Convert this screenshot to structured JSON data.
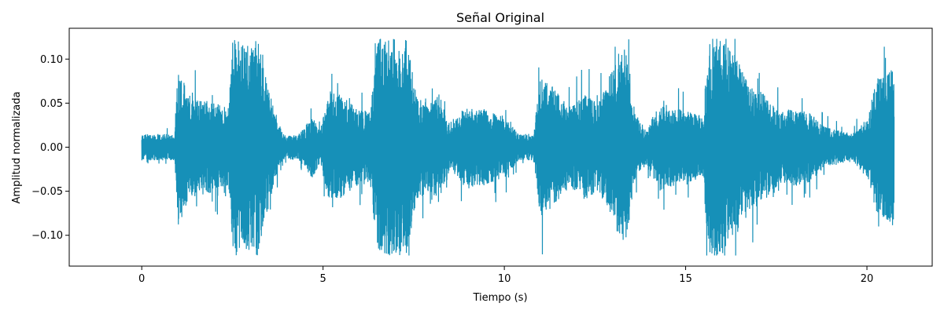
{
  "chart_data": {
    "type": "line",
    "title": "Señal Original",
    "xlabel": "Tiempo (s)",
    "ylabel": "Amplitud normalizada",
    "xlim": [
      -2,
      21.8
    ],
    "ylim": [
      -0.135,
      0.135
    ],
    "xticks": [
      0,
      5,
      10,
      15,
      20
    ],
    "xtick_labels": [
      "0",
      "5",
      "10",
      "15",
      "20"
    ],
    "yticks": [
      -0.1,
      -0.05,
      0.0,
      0.05,
      0.1
    ],
    "ytick_labels": [
      "−0.10",
      "−0.05",
      "0.00",
      "0.05",
      "0.10"
    ],
    "grid": false,
    "color": "#1690b8",
    "duration_s": 20.75,
    "clip_level": 0.123,
    "series": [
      {
        "envelope": {
          "t": [
            0,
            0.9,
            1.0,
            1.3,
            1.7,
            2.1,
            2.4,
            2.5,
            3.2,
            3.4,
            3.7,
            3.9,
            4.3,
            4.7,
            4.9,
            5.2,
            5.6,
            5.9,
            6.3,
            6.5,
            7.3,
            7.6,
            7.9,
            8.2,
            8.5,
            8.9,
            9.3,
            9.7,
            10.0,
            10.4,
            10.8,
            11.0,
            11.4,
            11.8,
            12.2,
            12.6,
            13.0,
            13.3,
            13.6,
            13.9,
            14.3,
            14.7,
            15.1,
            15.5,
            15.6,
            16.0,
            16.4,
            16.8,
            17.2,
            17.6,
            18.0,
            18.4,
            18.8,
            19.2,
            19.6,
            20.0,
            20.3,
            20.75
          ],
          "amp": [
            0.015,
            0.015,
            0.09,
            0.06,
            0.055,
            0.05,
            0.045,
            0.123,
            0.123,
            0.085,
            0.035,
            0.015,
            0.013,
            0.035,
            0.02,
            0.065,
            0.055,
            0.045,
            0.04,
            0.123,
            0.123,
            0.06,
            0.05,
            0.06,
            0.025,
            0.045,
            0.045,
            0.04,
            0.035,
            0.015,
            0.015,
            0.08,
            0.065,
            0.045,
            0.06,
            0.05,
            0.09,
            0.123,
            0.04,
            0.02,
            0.05,
            0.045,
            0.04,
            0.035,
            0.123,
            0.123,
            0.1,
            0.07,
            0.06,
            0.04,
            0.045,
            0.04,
            0.025,
            0.02,
            0.015,
            0.035,
            0.08,
            0.09
          ]
        }
      }
    ]
  }
}
